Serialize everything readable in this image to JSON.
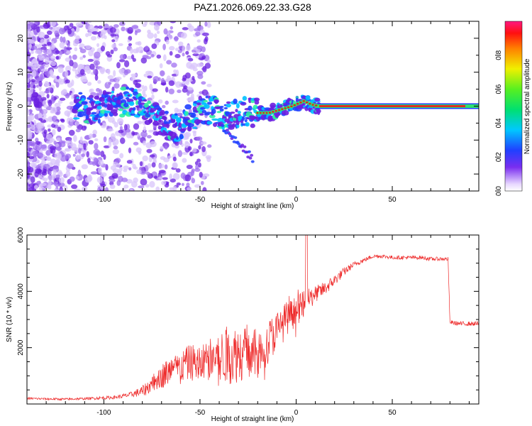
{
  "chart_data": [
    {
      "type": "heatmap",
      "title": "PAZ1.2026.069.22.33.G28",
      "xlabel": "Height of straight line (km)",
      "ylabel": "Frequency (Hz)",
      "xlim": [
        -140,
        95
      ],
      "ylim": [
        -25,
        25
      ],
      "xticks": [
        -100,
        -50,
        0,
        50
      ],
      "xtick_labels": [
        "-100",
        "-50",
        "0",
        "50"
      ],
      "yticks": [
        -20,
        -10,
        0,
        10,
        20
      ],
      "ytick_labels": [
        "-20",
        "-10",
        "0",
        "10",
        "20"
      ],
      "colorbar": {
        "label": "Normalized spectral amplitude",
        "range": [
          0.0,
          1.0
        ],
        "ticks": [
          0.0,
          0.2,
          0.4,
          0.6,
          0.8
        ],
        "tick_labels": [
          "0.0",
          "0.2",
          "0.4",
          "0.6",
          "0.8"
        ],
        "colormap": "rainbow"
      },
      "ridge_center": [
        {
          "x": -112,
          "y": -1.5
        },
        {
          "x": -105,
          "y": -1.0
        },
        {
          "x": -98,
          "y": 0.5
        },
        {
          "x": -92,
          "y": 1.0
        },
        {
          "x": -86,
          "y": 1.5
        },
        {
          "x": -80,
          "y": 0.0
        },
        {
          "x": -74,
          "y": -3.0
        },
        {
          "x": -68,
          "y": -5.5
        },
        {
          "x": -62,
          "y": -6.5
        },
        {
          "x": -56,
          "y": -3.5
        },
        {
          "x": -50,
          "y": -1.5
        },
        {
          "x": -44,
          "y": -1.0
        },
        {
          "x": -38,
          "y": -3.0
        },
        {
          "x": -32,
          "y": -2.5
        },
        {
          "x": -26,
          "y": -1.5
        },
        {
          "x": -20,
          "y": -2.0
        },
        {
          "x": -14,
          "y": -2.0
        },
        {
          "x": -8,
          "y": -1.0
        },
        {
          "x": -2,
          "y": 0.0
        },
        {
          "x": 4,
          "y": 1.5
        },
        {
          "x": 8,
          "y": 0.5
        },
        {
          "x": 12,
          "y": 0.0
        },
        {
          "x": 95,
          "y": 0.0
        }
      ]
    },
    {
      "type": "line",
      "xlabel": "Height of straight line (km)",
      "ylabel": "SNR (10 * v/v)",
      "xlim": [
        -140,
        95
      ],
      "ylim": [
        0,
        6000
      ],
      "xticks": [
        -100,
        -50,
        0,
        50
      ],
      "xtick_labels": [
        "-100",
        "-50",
        "0",
        "50"
      ],
      "yticks": [
        2000,
        4000,
        6000
      ],
      "ytick_labels": [
        "2000",
        "4000",
        "6000"
      ],
      "color": "#ee2b2b",
      "series": [
        {
          "name": "SNR",
          "x": [
            -140,
            -130,
            -120,
            -110,
            -100,
            -95,
            -90,
            -85,
            -80,
            -75,
            -70,
            -65,
            -60,
            -55,
            -50,
            -45,
            -40,
            -35,
            -30,
            -25,
            -20,
            -15,
            -10,
            -5,
            0,
            5,
            10,
            15,
            20,
            25,
            30,
            35,
            40,
            45,
            50,
            55,
            60,
            65,
            70,
            75,
            79,
            80,
            85,
            90,
            95
          ],
          "values": [
            200,
            180,
            170,
            190,
            220,
            230,
            280,
            350,
            450,
            700,
            1000,
            1200,
            1300,
            1500,
            1400,
            1600,
            1700,
            1700,
            1800,
            1900,
            1700,
            2200,
            2600,
            3000,
            3300,
            3600,
            3900,
            4100,
            4400,
            4700,
            4950,
            5100,
            5250,
            5250,
            5200,
            5200,
            5200,
            5200,
            5150,
            5150,
            5150,
            2900,
            2850,
            2850,
            2850
          ],
          "noise_amplitude": [
            40,
            40,
            40,
            40,
            60,
            60,
            80,
            100,
            200,
            300,
            450,
            500,
            550,
            650,
            700,
            800,
            900,
            1000,
            1050,
            1000,
            900,
            800,
            700,
            650,
            550,
            450,
            300,
            250,
            200,
            150,
            100,
            80,
            70,
            70,
            70,
            70,
            70,
            70,
            70,
            70,
            70,
            80,
            80,
            80,
            80
          ]
        }
      ]
    }
  ]
}
